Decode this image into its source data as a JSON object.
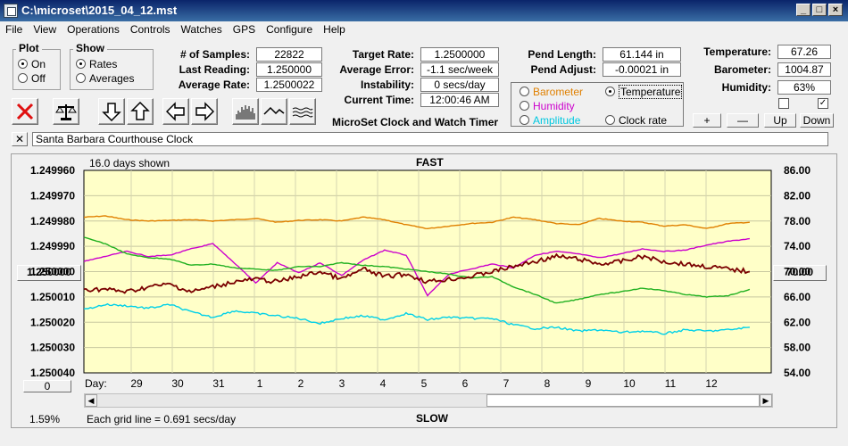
{
  "window": {
    "title": "C:\\microset\\2015_04_12.mst"
  },
  "menu": [
    "File",
    "View",
    "Operations",
    "Controls",
    "Watches",
    "GPS",
    "Configure",
    "Help"
  ],
  "plot_group": {
    "title": "Plot",
    "options": [
      "On",
      "Off"
    ],
    "selected": "On"
  },
  "show_group": {
    "title": "Show",
    "options": [
      "Rates",
      "Averages"
    ],
    "selected": "Rates"
  },
  "stats": {
    "samples_label": "# of Samples:",
    "samples": "22822",
    "last_reading_label": "Last Reading:",
    "last_reading": "1.250000",
    "average_rate_label": "Average Rate:",
    "average_rate": "1.2500022",
    "target_rate_label": "Target Rate:",
    "target_rate": "1.2500000",
    "average_error_label": "Average Error:",
    "average_error": "-1.1 sec/week",
    "instability_label": "Instability:",
    "instability": "0 secs/day",
    "current_time_label": "Current Time:",
    "current_time": "12:00:46 AM",
    "pend_length_label": "Pend Length:",
    "pend_length": "61.144 in",
    "pend_adjust_label": "Pend Adjust:",
    "pend_adjust": "-0.00021 in",
    "temperature_label": "Temperature:",
    "temperature": "67.26",
    "barometer_label": "Barometer:",
    "barometer": "1004.87",
    "humidity_label": "Humidity:",
    "humidity": "63%"
  },
  "app_caption": "MicroSet Clock and Watch Timer",
  "sensor_select": {
    "options": [
      {
        "label": "Barometer",
        "color": "#e08000"
      },
      {
        "label": "Temperature",
        "color": "#000000"
      },
      {
        "label": "Humidity",
        "color": "#cc00cc"
      },
      {
        "label": "Clock rate",
        "color": "#000000"
      },
      {
        "label": "Amplitude",
        "color": "#00c8e0"
      }
    ],
    "selected": "Temperature"
  },
  "adjust_buttons": {
    "plus": "+",
    "minus": "—",
    "up": "Up",
    "down": "Down"
  },
  "checkboxes": [
    {
      "checked": false
    },
    {
      "checked": true
    }
  ],
  "clock_name": "Santa Barbara Courthouse Clock",
  "chart_header": {
    "days_shown": "16.0 days shown",
    "fast_label": "FAST",
    "slow_label": "SLOW",
    "grid_note": "Each grid line = 0.691 secs/day",
    "percent": "1.59%",
    "day_label": "Day:"
  },
  "scale_buttons": {
    "left": "1.250000",
    "right": "70.00",
    "bottom": "0"
  },
  "chart_data": {
    "type": "line",
    "x_tick_labels": [
      "29",
      "30",
      "31",
      "1",
      "2",
      "3",
      "4",
      "5",
      "6",
      "7",
      "8",
      "9",
      "10",
      "11",
      "12"
    ],
    "y_left": {
      "ticks": [
        "1.249960",
        "1.249970",
        "1.249980",
        "1.249990",
        "1.250000",
        "1.250010",
        "1.250020",
        "1.250030",
        "1.250040"
      ],
      "range": [
        1.24996,
        1.25004
      ],
      "inverted": true
    },
    "y_right": {
      "ticks": [
        "86.00",
        "82.00",
        "78.00",
        "74.00",
        "70.00",
        "66.00",
        "62.00",
        "58.00",
        "54.00"
      ],
      "range": [
        54,
        86
      ]
    },
    "colors": {
      "clock_rate": "#7a0000",
      "temperature": "#20b020",
      "barometer": "#e08000",
      "humidity": "#cc00cc",
      "amplitude": "#00d0e8",
      "background": "#ffffc8"
    },
    "x_days": [
      0,
      0.5,
      1,
      1.5,
      2,
      2.5,
      3,
      3.5,
      4,
      4.5,
      5,
      5.5,
      6,
      6.5,
      7,
      7.5,
      8,
      8.5,
      9,
      9.5,
      10,
      10.5,
      11,
      11.5,
      12,
      12.5,
      13,
      13.5,
      14,
      14.5,
      15,
      15.5
    ],
    "series": [
      {
        "key": "barometer",
        "scale": "right",
        "values": [
          78.6,
          78.8,
          78.2,
          78.0,
          78.1,
          78.2,
          78.0,
          78.2,
          78.4,
          77.8,
          78.1,
          78.2,
          78.0,
          78.6,
          78.2,
          77.4,
          76.8,
          77.2,
          77.6,
          77.8,
          78.6,
          78.2,
          77.6,
          77.4,
          78.4,
          78.0,
          77.8,
          77.2,
          77.4,
          76.8,
          77.6,
          77.8
        ]
      },
      {
        "key": "humidity",
        "scale": "right",
        "values": [
          71.6,
          72.4,
          73.2,
          72.4,
          72.6,
          73.6,
          74.4,
          71.4,
          68.2,
          71.4,
          69.8,
          71.4,
          69.4,
          71.8,
          73.4,
          72.6,
          66.2,
          69.6,
          70.4,
          71.2,
          70.6,
          72.6,
          73.2,
          72.8,
          72.2,
          72.8,
          73.6,
          73.2,
          73.4,
          74.2,
          74.8,
          75.2
        ]
      },
      {
        "key": "temperature",
        "scale": "right",
        "values": [
          75.4,
          74.4,
          72.8,
          72.2,
          72.0,
          71.0,
          71.2,
          70.6,
          70.4,
          70.2,
          70.8,
          70.8,
          71.4,
          71.0,
          70.8,
          70.4,
          70.0,
          69.6,
          69.0,
          69.2,
          67.6,
          66.4,
          65.0,
          65.6,
          66.4,
          66.8,
          67.4,
          67.0,
          66.4,
          66.0,
          66.2,
          67.2
        ]
      },
      {
        "key": "amplitude",
        "scale": "right",
        "values": [
          64.0,
          64.8,
          64.6,
          64.2,
          64.8,
          63.6,
          62.8,
          63.8,
          63.4,
          63.0,
          62.6,
          61.8,
          62.6,
          63.0,
          62.4,
          63.4,
          62.4,
          62.8,
          62.6,
          62.6,
          61.6,
          61.0,
          61.2,
          60.6,
          60.8,
          60.4,
          60.6,
          60.2,
          60.8,
          60.6,
          60.8,
          61.2
        ]
      },
      {
        "key": "clock_rate",
        "scale": "left",
        "values": [
          1.250007,
          1.250007,
          1.250008,
          1.250006,
          1.250005,
          1.250008,
          1.250006,
          1.250004,
          1.250003,
          1.250004,
          1.250002,
          1.25,
          1.250003,
          1.249999,
          1.250002,
          1.250001,
          1.250004,
          1.250003,
          1.250002,
          1.25,
          1.249998,
          1.249996,
          1.249994,
          1.249995,
          1.249997,
          1.249996,
          1.249994,
          1.249996,
          1.249997,
          1.249998,
          1.249999,
          1.25
        ]
      }
    ]
  }
}
